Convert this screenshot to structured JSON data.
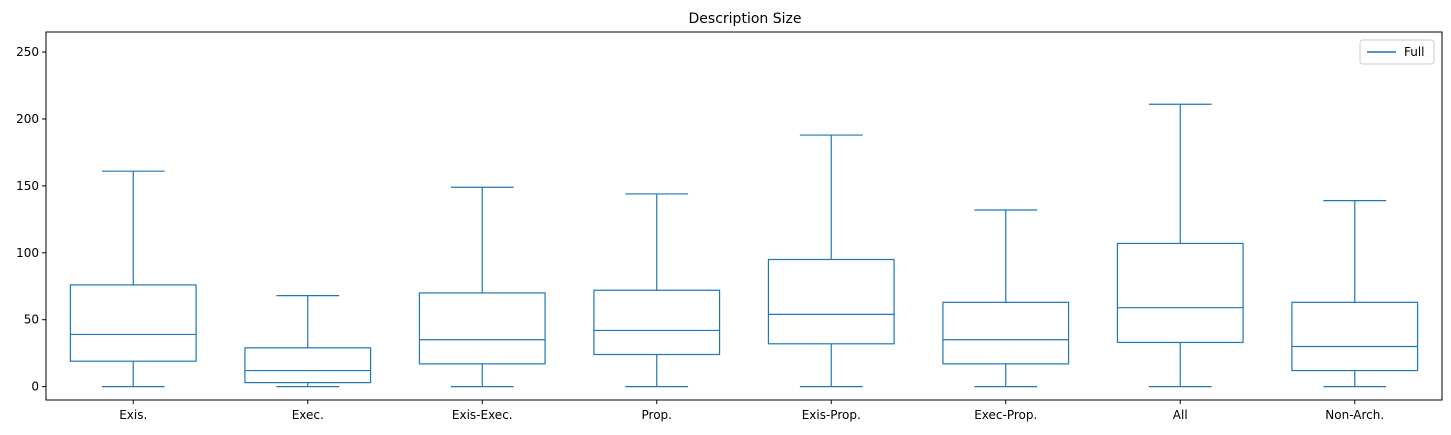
{
  "chart_data": {
    "type": "box",
    "title": "Description Size",
    "xlabel": "",
    "ylabel": "",
    "ylim": [
      -10,
      265
    ],
    "yticks": [
      0,
      50,
      100,
      150,
      200,
      250
    ],
    "categories": [
      "Exis.",
      "Exec.",
      "Exis-Exec.",
      "Prop.",
      "Exis-Prop.",
      "Exec-Prop.",
      "All",
      "Non-Arch."
    ],
    "series": [
      {
        "name": "Full",
        "color": "#1f77b4",
        "boxes": [
          {
            "whisker_low": 0,
            "q1": 19,
            "median": 39,
            "q3": 76,
            "whisker_high": 161
          },
          {
            "whisker_low": 0,
            "q1": 3,
            "median": 12,
            "q3": 29,
            "whisker_high": 68
          },
          {
            "whisker_low": 0,
            "q1": 17,
            "median": 35,
            "q3": 70,
            "whisker_high": 149
          },
          {
            "whisker_low": 0,
            "q1": 24,
            "median": 42,
            "q3": 72,
            "whisker_high": 144
          },
          {
            "whisker_low": 0,
            "q1": 32,
            "median": 54,
            "q3": 95,
            "whisker_high": 188
          },
          {
            "whisker_low": 0,
            "q1": 17,
            "median": 35,
            "q3": 63,
            "whisker_high": 132
          },
          {
            "whisker_low": 0,
            "q1": 33,
            "median": 59,
            "q3": 107,
            "whisker_high": 211
          },
          {
            "whisker_low": 0,
            "q1": 12,
            "median": 30,
            "q3": 63,
            "whisker_high": 139
          }
        ]
      }
    ],
    "legend": {
      "position": "top-right",
      "entries": [
        "Full"
      ]
    },
    "grid": false
  }
}
